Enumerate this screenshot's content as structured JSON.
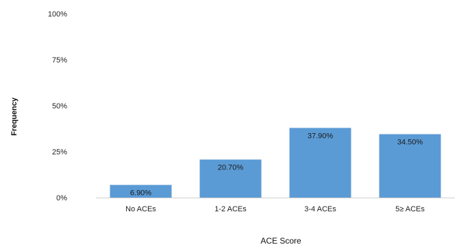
{
  "chart_data": {
    "type": "bar",
    "categories": [
      "No ACEs",
      "1-2 ACEs",
      "3-4 ACEs",
      "5≥ ACEs"
    ],
    "values": [
      6.9,
      20.7,
      37.9,
      34.5
    ],
    "data_labels": [
      "6.90%",
      "20.70%",
      "37.90%",
      "34.50%"
    ],
    "title": "",
    "xlabel": "ACE Score",
    "ylabel": "Frequency",
    "ylim": [
      0,
      100
    ],
    "yticks": [
      0,
      25,
      50,
      75,
      100
    ],
    "ytick_labels": [
      "0%",
      "25%",
      "50%",
      "75%",
      "100%"
    ],
    "grid": false,
    "legend": "none",
    "bar_color": "#5b9bd5"
  }
}
